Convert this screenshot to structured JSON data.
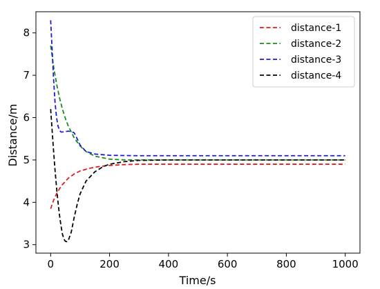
{
  "chart_data": {
    "type": "line",
    "title": "",
    "xlabel": "Time/s",
    "ylabel": "Distance/m",
    "xlim": [
      -50,
      1050
    ],
    "ylim": [
      2.8,
      8.5
    ],
    "xticks": [
      0,
      200,
      400,
      600,
      800,
      1000
    ],
    "yticks": [
      3,
      4,
      5,
      6,
      7,
      8
    ],
    "xtick_labels": [
      "0",
      "200",
      "400",
      "600",
      "800",
      "1000"
    ],
    "ytick_labels": [
      "3",
      "4",
      "5",
      "6",
      "7",
      "8"
    ],
    "grid": false,
    "legend_position": "top-right",
    "line_style": "dashed",
    "series": [
      {
        "name": "distance-1",
        "color": "#e31a1c",
        "x": [
          0,
          10,
          20,
          30,
          40,
          60,
          80,
          100,
          130,
          160,
          200,
          250,
          300,
          400,
          600,
          800,
          1000
        ],
        "y": [
          3.85,
          4.05,
          4.2,
          4.32,
          4.42,
          4.57,
          4.67,
          4.74,
          4.8,
          4.84,
          4.87,
          4.89,
          4.9,
          4.9,
          4.9,
          4.9,
          4.9
        ]
      },
      {
        "name": "distance-2",
        "color": "#1a8a1a",
        "x": [
          0,
          5,
          10,
          20,
          30,
          40,
          50,
          60,
          80,
          100,
          120,
          150,
          200,
          250,
          300,
          400,
          600,
          800,
          1000
        ],
        "y": [
          7.7,
          7.45,
          7.2,
          6.8,
          6.47,
          6.2,
          5.98,
          5.8,
          5.52,
          5.33,
          5.2,
          5.09,
          5.02,
          5.0,
          5.0,
          5.0,
          5.0,
          5.0,
          5.0
        ]
      },
      {
        "name": "distance-3",
        "color": "#1a1adb",
        "x": [
          0,
          5,
          10,
          15,
          20,
          25,
          30,
          35,
          40,
          50,
          60,
          70,
          80,
          90,
          100,
          120,
          150,
          200,
          300,
          400,
          600,
          800,
          1000
        ],
        "y": [
          8.3,
          7.6,
          6.9,
          6.35,
          6.0,
          5.8,
          5.7,
          5.66,
          5.66,
          5.67,
          5.68,
          5.67,
          5.64,
          5.5,
          5.35,
          5.2,
          5.14,
          5.11,
          5.1,
          5.1,
          5.1,
          5.1,
          5.1
        ]
      },
      {
        "name": "distance-4",
        "color": "#000000",
        "x": [
          0,
          5,
          10,
          15,
          20,
          25,
          30,
          35,
          40,
          45,
          50,
          55,
          60,
          70,
          80,
          90,
          100,
          120,
          150,
          180,
          200,
          250,
          300,
          400,
          600,
          800,
          1000
        ],
        "y": [
          6.2,
          5.7,
          5.2,
          4.75,
          4.35,
          4.0,
          3.7,
          3.45,
          3.25,
          3.13,
          3.08,
          3.07,
          3.1,
          3.3,
          3.65,
          3.95,
          4.2,
          4.5,
          4.72,
          4.85,
          4.9,
          4.96,
          4.99,
          5.0,
          5.0,
          5.0,
          5.0
        ]
      }
    ]
  }
}
